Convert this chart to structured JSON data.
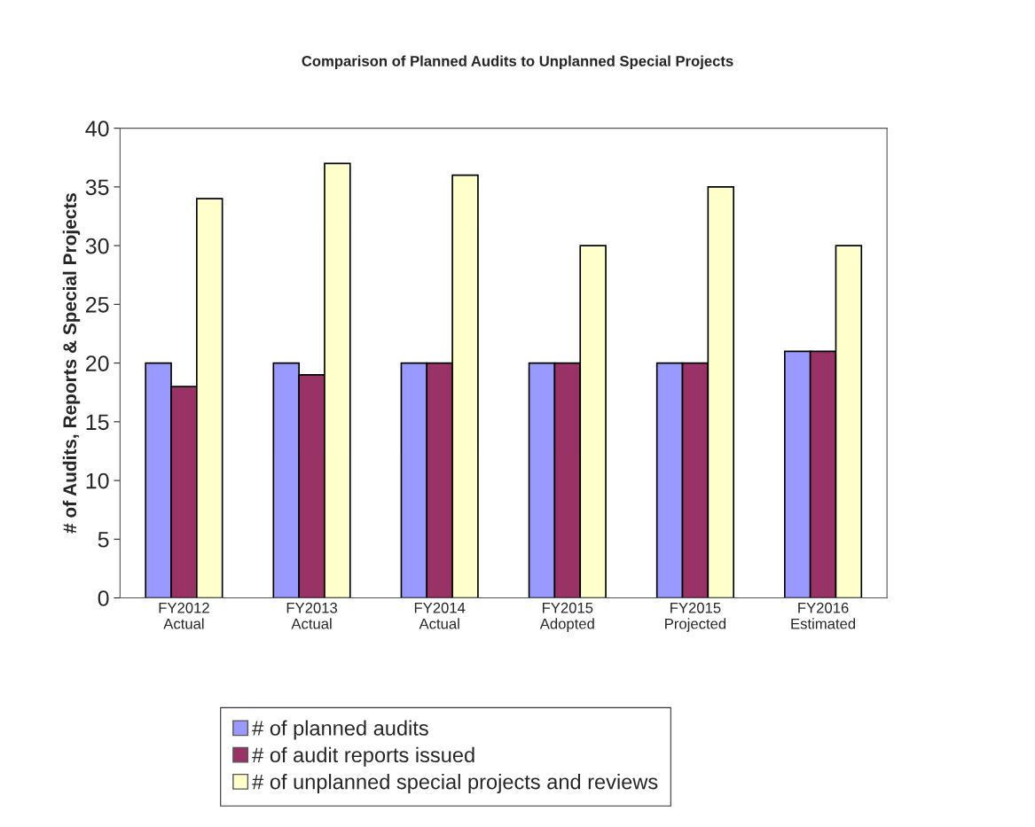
{
  "chart_data": {
    "type": "bar",
    "title": "Comparison of Planned Audits to Unplanned Special Projects",
    "ylabel": "# of Audits, Reports & Special Projects",
    "categories": [
      "FY2012\nActual",
      "FY2013\nActual",
      "FY2014\nActual",
      "FY2015\nAdopted",
      "FY2015\nProjected",
      "FY2016\nEstimated"
    ],
    "series": [
      {
        "name": "# of planned audits",
        "color": "#9999ff",
        "values": [
          20,
          20,
          20,
          20,
          20,
          21
        ]
      },
      {
        "name": "# of audit reports issued",
        "color": "#993366",
        "values": [
          18,
          19,
          20,
          20,
          20,
          21
        ]
      },
      {
        "name": "# of unplanned special projects and reviews",
        "color": "#ffffcc",
        "values": [
          34,
          37,
          36,
          30,
          35,
          30
        ]
      }
    ],
    "ylim": [
      0,
      40
    ],
    "yticks": [
      0,
      5,
      10,
      15,
      20,
      25,
      30,
      35,
      40
    ],
    "grid": false,
    "legend": "bottom"
  }
}
